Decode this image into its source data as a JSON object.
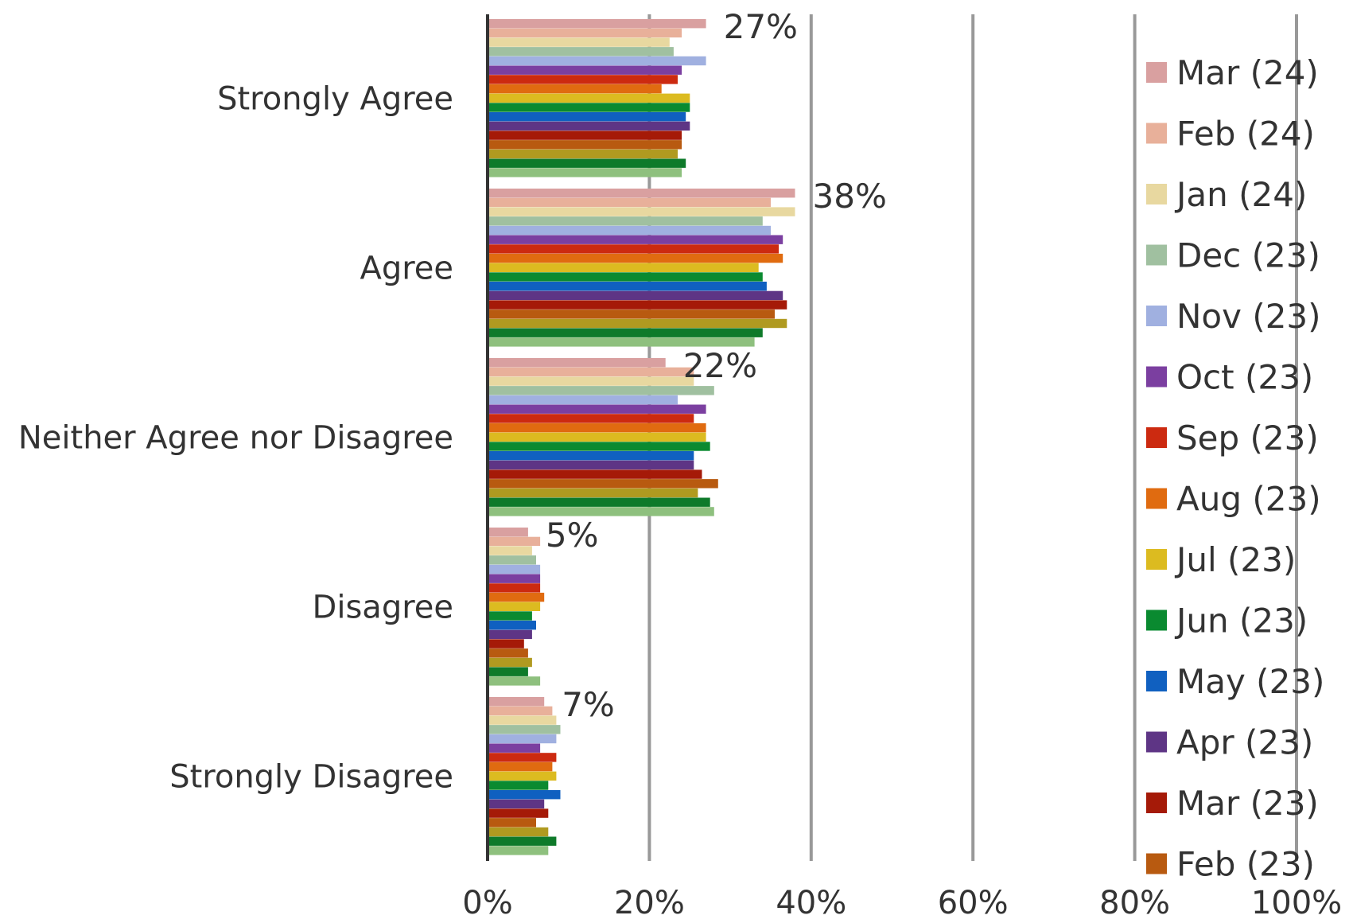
{
  "chart_data": {
    "type": "bar",
    "orientation": "horizontal",
    "categories": [
      "Strongly Agree",
      "Agree",
      "Neither Agree nor Disagree",
      "Disagree",
      "Strongly Disagree"
    ],
    "xlim": [
      0,
      100
    ],
    "x_ticks": [
      "0%",
      "20%",
      "40%",
      "60%",
      "80%",
      "100%"
    ],
    "grid": true,
    "legend_position": "right",
    "value_labels": [
      "27%",
      "38%",
      "22%",
      "5%",
      "7%"
    ],
    "series": [
      {
        "name": "Mar (24)",
        "color": "#d9a0a0",
        "values": [
          27,
          38,
          22,
          5,
          7
        ]
      },
      {
        "name": "Feb (24)",
        "color": "#e8b09a",
        "values": [
          24,
          35,
          25.5,
          6.5,
          8
        ]
      },
      {
        "name": "Jan (24)",
        "color": "#e8d8a0",
        "values": [
          22.5,
          38,
          25.5,
          5.5,
          8.5
        ]
      },
      {
        "name": "Dec (23)",
        "color": "#a0c0a0",
        "values": [
          23,
          34,
          28,
          6,
          9
        ]
      },
      {
        "name": "Nov (23)",
        "color": "#a0b0e0",
        "values": [
          27,
          35,
          23.5,
          6.5,
          8.5
        ]
      },
      {
        "name": "Oct (23)",
        "color": "#7b3fa0",
        "values": [
          24,
          36.5,
          27,
          6.5,
          6.5
        ]
      },
      {
        "name": "Sep (23)",
        "color": "#cc2a10",
        "values": [
          23.5,
          36,
          25.5,
          6.5,
          8.5
        ]
      },
      {
        "name": "Aug (23)",
        "color": "#e06b10",
        "values": [
          21.5,
          36.5,
          27,
          7,
          8
        ]
      },
      {
        "name": "Jul (23)",
        "color": "#dcbb20",
        "values": [
          25,
          33.5,
          27,
          6.5,
          8.5
        ]
      },
      {
        "name": "Jun (23)",
        "color": "#0a8a30",
        "values": [
          25,
          34,
          27.5,
          5.5,
          7.5
        ]
      },
      {
        "name": "May (23)",
        "color": "#1060c0",
        "values": [
          24.5,
          34.5,
          25.5,
          6,
          9
        ]
      },
      {
        "name": "Apr (23)",
        "color": "#5e3585",
        "values": [
          25,
          36.5,
          25.5,
          5.5,
          7
        ]
      },
      {
        "name": "Mar (23)",
        "color": "#a51a08",
        "values": [
          24,
          37,
          26.5,
          4.5,
          7.5
        ]
      },
      {
        "name": "Feb (23)",
        "color": "#b85a10",
        "values": [
          24,
          35.5,
          28.5,
          5,
          6
        ]
      },
      {
        "name": "",
        "color": "#b09a20",
        "values": [
          23.5,
          37,
          26,
          5.5,
          7.5
        ]
      },
      {
        "name": "",
        "color": "#0e7a2a",
        "values": [
          24.5,
          34,
          27.5,
          5,
          8.5
        ]
      },
      {
        "name": "",
        "color": "#8ec07e",
        "values": [
          24,
          33,
          28,
          6.5,
          7.5
        ]
      }
    ]
  }
}
